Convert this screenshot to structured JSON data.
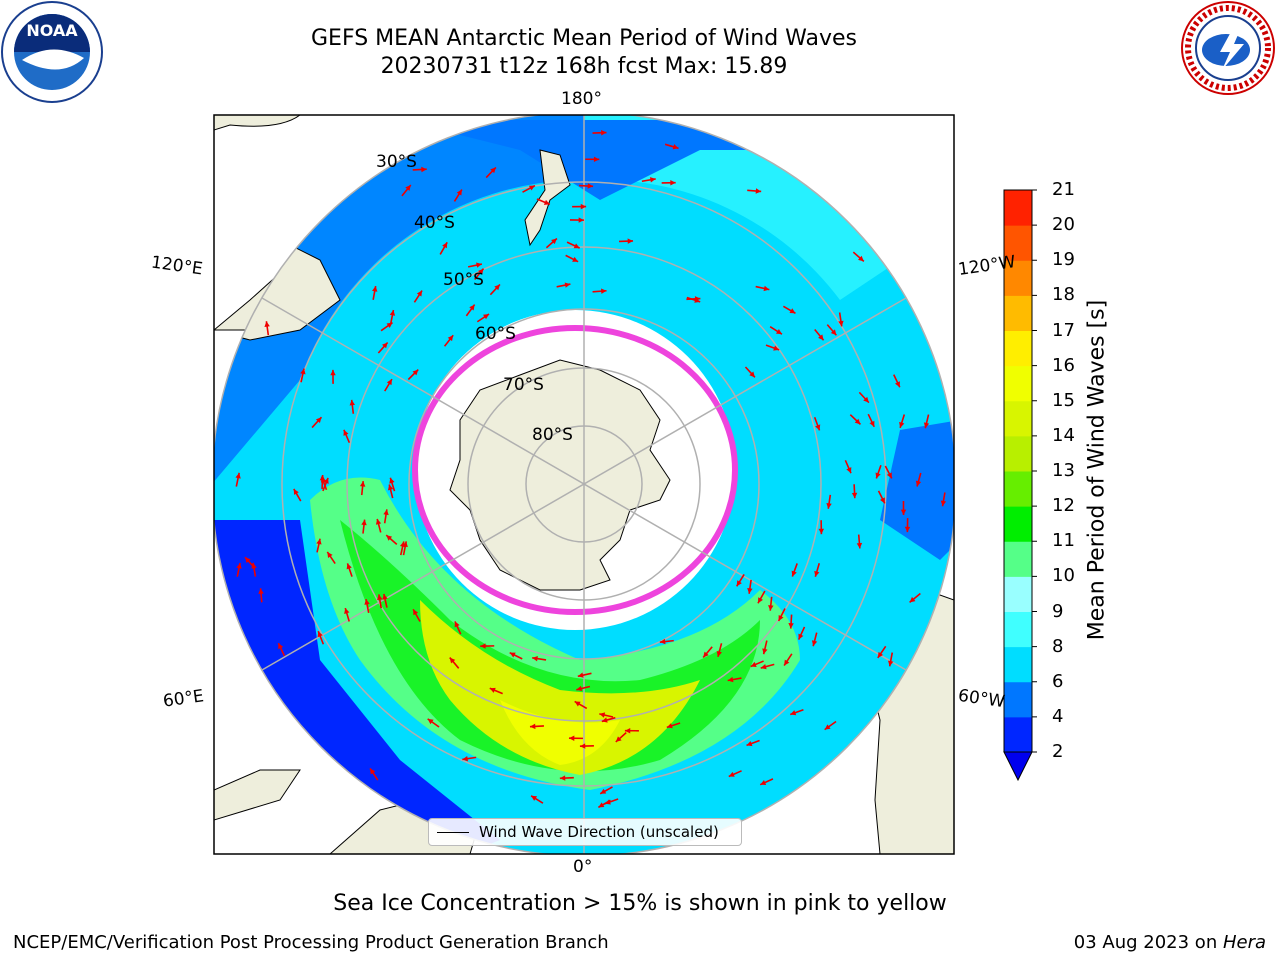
{
  "title": {
    "line1": "GEFS MEAN Antarctic Mean Period of Wind Waves",
    "line2": "20230731 t12z 168h fcst   Max: 15.89"
  },
  "logos": {
    "left": {
      "icon": "noaa-logo",
      "text": "NOAA"
    },
    "right": {
      "icon": "nws-logo",
      "text": "NATIONAL WEATHER SERVICE"
    }
  },
  "map": {
    "projection": "south-polar-stereographic",
    "lat_labels": [
      "30°S",
      "40°S",
      "50°S",
      "60°S",
      "70°S",
      "80°S"
    ],
    "lon_labels": {
      "top": "180°",
      "bottom": "0°",
      "upper_left": "120°E",
      "upper_right": "120°W",
      "lower_left": "60°E",
      "lower_right": "60°W"
    },
    "legend": "Wind Wave Direction (unscaled)",
    "colors": {
      "land": "#eeeedc",
      "sea_ice_edge": "#ee44dd",
      "arrow": "#ee0000",
      "grid": "#b0b0b0"
    }
  },
  "colorbar": {
    "title": "Mean Period of Wind Waves [s]",
    "ticks": [
      "2",
      "4",
      "6",
      "8",
      "9",
      "10",
      "11",
      "12",
      "13",
      "14",
      "15",
      "16",
      "17",
      "18",
      "19",
      "20",
      "21"
    ],
    "colors": [
      "#0026ff",
      "#0077ff",
      "#00ddff",
      "#40ffff",
      "#99ffff",
      "#55ff88",
      "#00ee00",
      "#66ee00",
      "#b8ef00",
      "#d8f500",
      "#f0ff00",
      "#ffee00",
      "#ffbb00",
      "#ff8800",
      "#ff5500",
      "#ff2200",
      "#ff0000"
    ],
    "under_color": "#0000ee"
  },
  "footer": {
    "note": "Sea Ice Concentration > 15% is shown in pink to yellow",
    "left": "NCEP/EMC/Verification Post Processing Product Generation Branch",
    "right_date": "03 Aug 2023 on ",
    "right_machine": "Hera"
  }
}
